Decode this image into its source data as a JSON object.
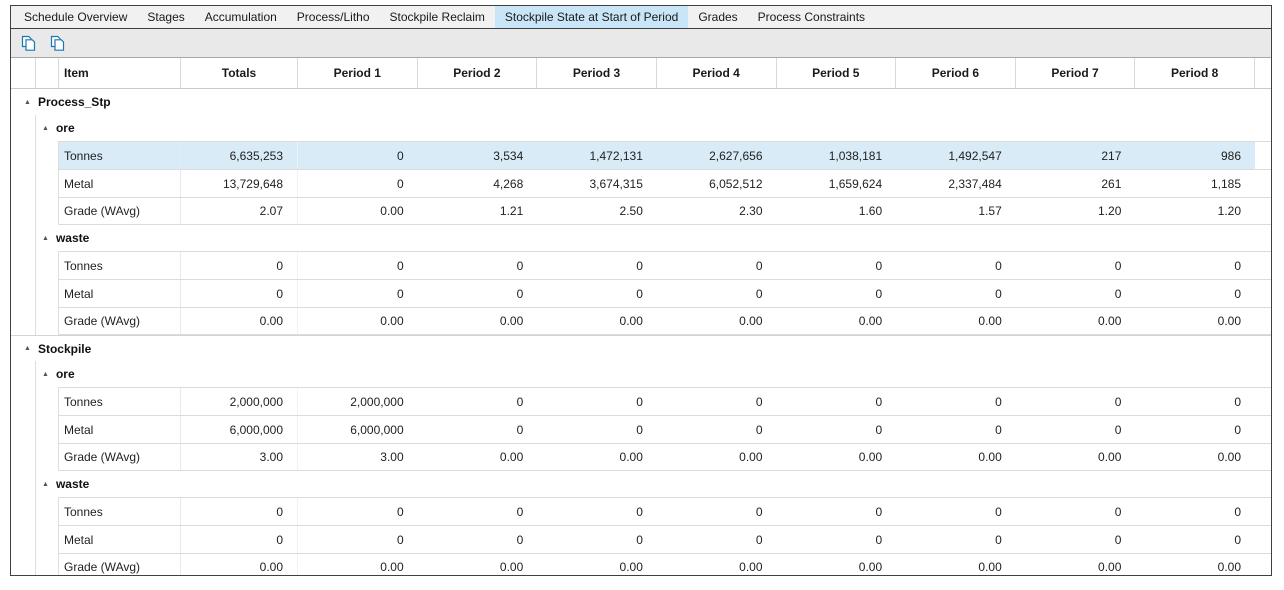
{
  "tabs": [
    {
      "label": "Schedule Overview",
      "selected": false
    },
    {
      "label": "Stages",
      "selected": false
    },
    {
      "label": "Accumulation",
      "selected": false
    },
    {
      "label": "Process/Litho",
      "selected": false
    },
    {
      "label": "Stockpile Reclaim",
      "selected": false
    },
    {
      "label": "Stockpile State at Start of Period",
      "selected": true
    },
    {
      "label": "Grades",
      "selected": false
    },
    {
      "label": "Process Constraints",
      "selected": false
    }
  ],
  "toolbar": {
    "buttons": [
      {
        "name": "copy",
        "icon": "copy-icon"
      },
      {
        "name": "copy-alt",
        "icon": "copy-icon"
      }
    ]
  },
  "icons": {
    "expander": "▲"
  },
  "colors": {
    "selected_tab_bg": "#c9e6f8",
    "row_highlight_bg": "#d9ebf7",
    "toolbar_icon_blue": "#1878b4",
    "panel_border": "#404040"
  },
  "table": {
    "columns": [
      "Item",
      "Totals",
      "Period 1",
      "Period 2",
      "Period 3",
      "Period 4",
      "Period 5",
      "Period 6",
      "Period 7",
      "Period 8"
    ],
    "groups": [
      {
        "label": "Process_Stp",
        "subgroups": [
          {
            "label": "ore",
            "rows": [
              {
                "label": "Tonnes",
                "highlighted": true,
                "values": [
                  "6,635,253",
                  "0",
                  "3,534",
                  "1,472,131",
                  "2,627,656",
                  "1,038,181",
                  "1,492,547",
                  "217",
                  "986"
                ]
              },
              {
                "label": "Metal",
                "highlighted": false,
                "values": [
                  "13,729,648",
                  "0",
                  "4,268",
                  "3,674,315",
                  "6,052,512",
                  "1,659,624",
                  "2,337,484",
                  "261",
                  "1,185"
                ]
              },
              {
                "label": "Grade (WAvg)",
                "highlighted": false,
                "values": [
                  "2.07",
                  "0.00",
                  "1.21",
                  "2.50",
                  "2.30",
                  "1.60",
                  "1.57",
                  "1.20",
                  "1.20"
                ]
              }
            ]
          },
          {
            "label": "waste",
            "rows": [
              {
                "label": "Tonnes",
                "highlighted": false,
                "values": [
                  "0",
                  "0",
                  "0",
                  "0",
                  "0",
                  "0",
                  "0",
                  "0",
                  "0"
                ]
              },
              {
                "label": "Metal",
                "highlighted": false,
                "values": [
                  "0",
                  "0",
                  "0",
                  "0",
                  "0",
                  "0",
                  "0",
                  "0",
                  "0"
                ]
              },
              {
                "label": "Grade (WAvg)",
                "highlighted": false,
                "values": [
                  "0.00",
                  "0.00",
                  "0.00",
                  "0.00",
                  "0.00",
                  "0.00",
                  "0.00",
                  "0.00",
                  "0.00"
                ]
              }
            ]
          }
        ]
      },
      {
        "label": "Stockpile",
        "subgroups": [
          {
            "label": "ore",
            "rows": [
              {
                "label": "Tonnes",
                "highlighted": false,
                "values": [
                  "2,000,000",
                  "2,000,000",
                  "0",
                  "0",
                  "0",
                  "0",
                  "0",
                  "0",
                  "0"
                ]
              },
              {
                "label": "Metal",
                "highlighted": false,
                "values": [
                  "6,000,000",
                  "6,000,000",
                  "0",
                  "0",
                  "0",
                  "0",
                  "0",
                  "0",
                  "0"
                ]
              },
              {
                "label": "Grade (WAvg)",
                "highlighted": false,
                "values": [
                  "3.00",
                  "3.00",
                  "0.00",
                  "0.00",
                  "0.00",
                  "0.00",
                  "0.00",
                  "0.00",
                  "0.00"
                ]
              }
            ]
          },
          {
            "label": "waste",
            "rows": [
              {
                "label": "Tonnes",
                "highlighted": false,
                "values": [
                  "0",
                  "0",
                  "0",
                  "0",
                  "0",
                  "0",
                  "0",
                  "0",
                  "0"
                ]
              },
              {
                "label": "Metal",
                "highlighted": false,
                "values": [
                  "0",
                  "0",
                  "0",
                  "0",
                  "0",
                  "0",
                  "0",
                  "0",
                  "0"
                ]
              },
              {
                "label": "Grade (WAvg)",
                "highlighted": false,
                "values": [
                  "0.00",
                  "0.00",
                  "0.00",
                  "0.00",
                  "0.00",
                  "0.00",
                  "0.00",
                  "0.00",
                  "0.00"
                ]
              }
            ]
          }
        ]
      }
    ]
  }
}
